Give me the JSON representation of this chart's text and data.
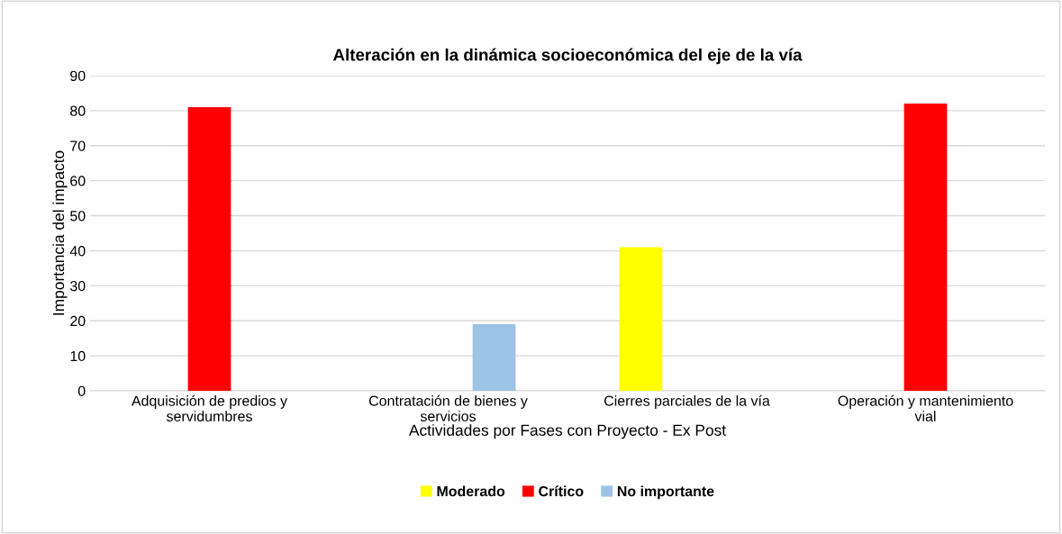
{
  "chart_data": {
    "type": "bar",
    "title": "Alteración en la dinámica socioeconómica del eje de la vía",
    "xlabel": "Actividades por Fases con Proyecto - Ex Post",
    "ylabel": "Importancia del impacto",
    "categories": [
      "Adquisición de predios y\nservidumbres",
      "Contratación de bienes y\nservicios",
      "Cierres parciales de la vía",
      "Operación y mantenimiento\nvial"
    ],
    "series": [
      {
        "name": "Moderado",
        "color": "#ffff00",
        "values": [
          null,
          null,
          41,
          null
        ]
      },
      {
        "name": "Crítico",
        "color": "#ff0000",
        "values": [
          81,
          null,
          null,
          82
        ]
      },
      {
        "name": "No importante",
        "color": "#9dc3e6",
        "values": [
          null,
          19,
          null,
          null
        ]
      }
    ],
    "ylim": [
      0,
      90
    ],
    "yticks": [
      0,
      10,
      20,
      30,
      40,
      50,
      60,
      70,
      80,
      90
    ],
    "grid": "y",
    "legend": "bottom"
  }
}
